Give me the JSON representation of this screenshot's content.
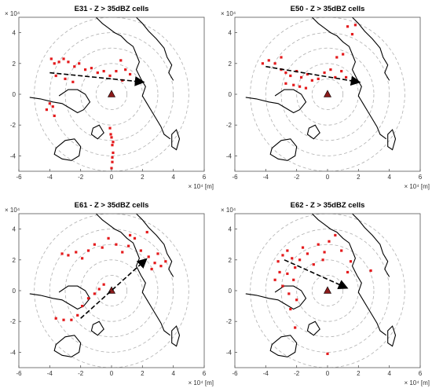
{
  "figure": {
    "colors": {
      "cells": "#e41a1c",
      "coast": "#000000",
      "range_rings": "#b0b0b0",
      "radar": "#8b1a1a",
      "axes": "#555555"
    }
  },
  "chart_data": [
    {
      "type": "scatter",
      "title": "E31 - Z > 35dBZ cells",
      "x_multiplier": "× 10⁴ [m]",
      "y_multiplier": "× 10⁴",
      "xlim": [
        -6,
        6
      ],
      "ylim": [
        -5,
        5
      ],
      "x_ticks": [
        "-6",
        "-4",
        "-2",
        "0",
        "2",
        "4",
        "6"
      ],
      "y_ticks": [
        "4",
        "2",
        "0",
        "-2",
        "-4"
      ],
      "range_rings": [
        1,
        2,
        3,
        4,
        5
      ],
      "radar_location": [
        0,
        0
      ],
      "arrow": {
        "from": [
          -4.0,
          1.4
        ],
        "to": [
          2.0,
          0.8
        ]
      },
      "cells": [
        [
          -3.9,
          2.3
        ],
        [
          -3.7,
          2.0
        ],
        [
          -3.4,
          2.1
        ],
        [
          -3.1,
          2.3
        ],
        [
          -2.8,
          2.1
        ],
        [
          -2.4,
          1.8
        ],
        [
          -2.1,
          2.0
        ],
        [
          -1.7,
          1.6
        ],
        [
          -1.3,
          1.7
        ],
        [
          -0.9,
          1.4
        ],
        [
          -0.5,
          1.5
        ],
        [
          -0.1,
          1.2
        ],
        [
          0.3,
          1.5
        ],
        [
          0.6,
          2.2
        ],
        [
          0.9,
          1.6
        ],
        [
          1.2,
          1.3
        ],
        [
          0.7,
          0.9
        ],
        [
          -3.6,
          1.2
        ],
        [
          -3.0,
          1.0
        ],
        [
          -2.5,
          0.8
        ],
        [
          -3.8,
          -0.8
        ],
        [
          -4.0,
          -0.6
        ],
        [
          -3.7,
          -1.4
        ],
        [
          -4.2,
          -1.0
        ],
        [
          -0.1,
          -2.2
        ],
        [
          0.0,
          -2.8
        ],
        [
          0.05,
          -3.3
        ],
        [
          0.1,
          -3.8
        ],
        [
          0.05,
          -4.4
        ],
        [
          0.0,
          -4.8
        ],
        [
          -0.05,
          -2.6
        ],
        [
          0.1,
          -3.1
        ],
        [
          0.05,
          -4.1
        ]
      ]
    },
    {
      "type": "scatter",
      "title": "E50 - Z > 35dBZ cells",
      "x_multiplier": "× 10⁴ [m]",
      "y_multiplier": "× 10⁴",
      "xlim": [
        -6,
        6
      ],
      "ylim": [
        -5,
        5
      ],
      "x_ticks": [
        "-6",
        "-4",
        "-2",
        "0",
        "2",
        "4",
        "6"
      ],
      "y_ticks": [
        "4",
        "2",
        "0",
        "-2",
        "-4"
      ],
      "range_rings": [
        1,
        2,
        3,
        4,
        5
      ],
      "radar_location": [
        0,
        0
      ],
      "arrow": {
        "from": [
          -4.0,
          1.8
        ],
        "to": [
          2.0,
          0.8
        ]
      },
      "cells": [
        [
          -4.2,
          2.0
        ],
        [
          -3.8,
          2.2
        ],
        [
          -3.4,
          2.0
        ],
        [
          -3.0,
          1.6
        ],
        [
          -2.7,
          1.4
        ],
        [
          -2.4,
          1.2
        ],
        [
          -2.0,
          1.5
        ],
        [
          -1.7,
          1.1
        ],
        [
          -1.3,
          1.3
        ],
        [
          -1.0,
          0.9
        ],
        [
          -0.6,
          1.0
        ],
        [
          -0.2,
          1.4
        ],
        [
          0.2,
          1.6
        ],
        [
          0.5,
          1.1
        ],
        [
          0.9,
          1.5
        ],
        [
          1.2,
          1.1
        ],
        [
          0.6,
          2.4
        ],
        [
          1.0,
          2.6
        ],
        [
          -2.2,
          0.6
        ],
        [
          -1.8,
          0.5
        ],
        [
          -2.7,
          0.7
        ],
        [
          1.3,
          4.4
        ],
        [
          1.8,
          4.5
        ],
        [
          1.6,
          3.9
        ],
        [
          -3.0,
          2.4
        ],
        [
          -1.4,
          0.4
        ]
      ]
    },
    {
      "type": "scatter",
      "title": "E61 - Z > 35dBZ cells",
      "x_multiplier": "× 10⁴ [m]",
      "y_multiplier": "× 10⁴",
      "xlim": [
        -6,
        6
      ],
      "ylim": [
        -5,
        5
      ],
      "x_ticks": [
        "-6",
        "-4",
        "-2",
        "0",
        "2",
        "4",
        "6"
      ],
      "y_ticks": [
        "4",
        "2",
        "0",
        "-2",
        "-4"
      ],
      "range_rings": [
        1,
        2,
        3,
        4,
        5
      ],
      "radar_location": [
        0,
        0
      ],
      "arrow": {
        "from": [
          -2.0,
          -1.8
        ],
        "to": [
          2.2,
          2.0
        ]
      },
      "cells": [
        [
          -3.2,
          2.4
        ],
        [
          -2.8,
          2.3
        ],
        [
          -2.3,
          2.5
        ],
        [
          -1.9,
          2.1
        ],
        [
          -1.5,
          2.6
        ],
        [
          -1.1,
          3.0
        ],
        [
          -0.6,
          2.8
        ],
        [
          -0.2,
          3.4
        ],
        [
          0.3,
          3.0
        ],
        [
          0.7,
          2.5
        ],
        [
          1.1,
          2.9
        ],
        [
          1.5,
          3.4
        ],
        [
          1.9,
          2.6
        ],
        [
          2.4,
          2.2
        ],
        [
          2.8,
          1.8
        ],
        [
          3.2,
          1.6
        ],
        [
          3.5,
          1.9
        ],
        [
          2.6,
          1.4
        ],
        [
          3.0,
          2.4
        ],
        [
          -0.8,
          0.1
        ],
        [
          -1.1,
          -0.2
        ],
        [
          -1.5,
          -0.5
        ],
        [
          -1.9,
          -1.0
        ],
        [
          -2.2,
          -1.6
        ],
        [
          -2.6,
          -1.9
        ],
        [
          -3.1,
          -1.9
        ],
        [
          -3.6,
          -1.8
        ],
        [
          -0.5,
          0.4
        ],
        [
          2.3,
          3.8
        ],
        [
          1.2,
          3.6
        ]
      ]
    },
    {
      "type": "scatter",
      "title": "E62 - Z > 35dBZ cells",
      "x_multiplier": "× 10⁴ [m]",
      "y_multiplier": "× 10⁴",
      "xlim": [
        -6,
        6
      ],
      "ylim": [
        -5,
        5
      ],
      "x_ticks": [
        "-6",
        "-4",
        "-2",
        "0",
        "2",
        "4",
        "6"
      ],
      "y_ticks": [
        "4",
        "2",
        "0",
        "-2",
        "-4"
      ],
      "range_rings": [
        1,
        2,
        3,
        4,
        5
      ],
      "radar_location": [
        0,
        0
      ],
      "arrow": {
        "from": [
          -2.8,
          2.0
        ],
        "to": [
          1.2,
          0.2
        ]
      },
      "cells": [
        [
          -3.2,
          1.9
        ],
        [
          -2.9,
          2.3
        ],
        [
          -2.6,
          2.6
        ],
        [
          -2.3,
          2.1
        ],
        [
          -2.1,
          1.5
        ],
        [
          -2.6,
          1.1
        ],
        [
          -3.1,
          1.2
        ],
        [
          -3.4,
          0.7
        ],
        [
          -2.9,
          0.3
        ],
        [
          -2.5,
          -0.2
        ],
        [
          -2.2,
          0.7
        ],
        [
          -1.8,
          2.0
        ],
        [
          -1.6,
          2.8
        ],
        [
          -1.3,
          2.4
        ],
        [
          -0.9,
          1.7
        ],
        [
          -0.6,
          3.0
        ],
        [
          -0.3,
          2.0
        ],
        [
          0.1,
          3.2
        ],
        [
          0.5,
          3.6
        ],
        [
          0.9,
          2.6
        ],
        [
          1.3,
          1.2
        ],
        [
          1.5,
          1.9
        ],
        [
          2.8,
          1.3
        ],
        [
          0.0,
          -4.1
        ],
        [
          -2.1,
          -2.4
        ],
        [
          -2.4,
          -1.2
        ],
        [
          -2.0,
          -0.6
        ],
        [
          -0.2,
          2.5
        ]
      ]
    }
  ]
}
